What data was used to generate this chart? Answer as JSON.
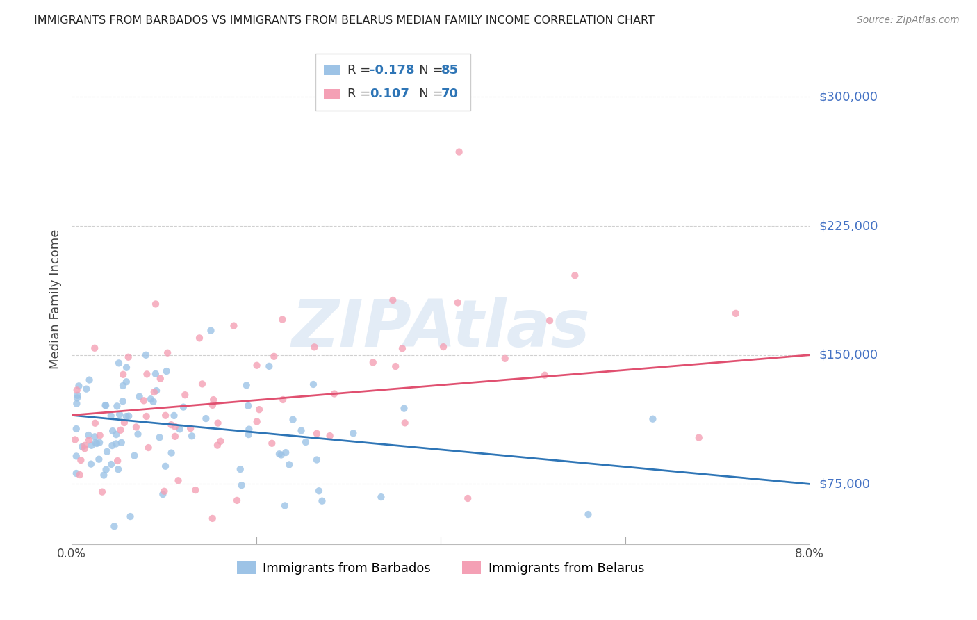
{
  "title": "IMMIGRANTS FROM BARBADOS VS IMMIGRANTS FROM BELARUS MEDIAN FAMILY INCOME CORRELATION CHART",
  "source": "Source: ZipAtlas.com",
  "ylabel": "Median Family Income",
  "xlim": [
    0.0,
    0.08
  ],
  "ylim": [
    40000,
    325000
  ],
  "color_barbados": "#9dc3e6",
  "color_belarus": "#f4a0b5",
  "color_line_barbados": "#2e75b6",
  "color_line_belarus": "#e05070",
  "R_barbados": -0.178,
  "N_barbados": 85,
  "R_belarus": 0.107,
  "N_belarus": 70,
  "legend_label_barbados": "Immigrants from Barbados",
  "legend_label_belarus": "Immigrants from Belarus",
  "watermark": "ZIPAtlas",
  "background_color": "#ffffff",
  "grid_color": "#d0d0d0",
  "title_color": "#222222",
  "axis_label_color": "#444444",
  "tick_label_color": "#4472c4",
  "source_color": "#888888",
  "ytick_vals": [
    75000,
    150000,
    225000,
    300000
  ],
  "ytick_labels": [
    "$75,000",
    "$150,000",
    "$225,000",
    "$300,000"
  ]
}
